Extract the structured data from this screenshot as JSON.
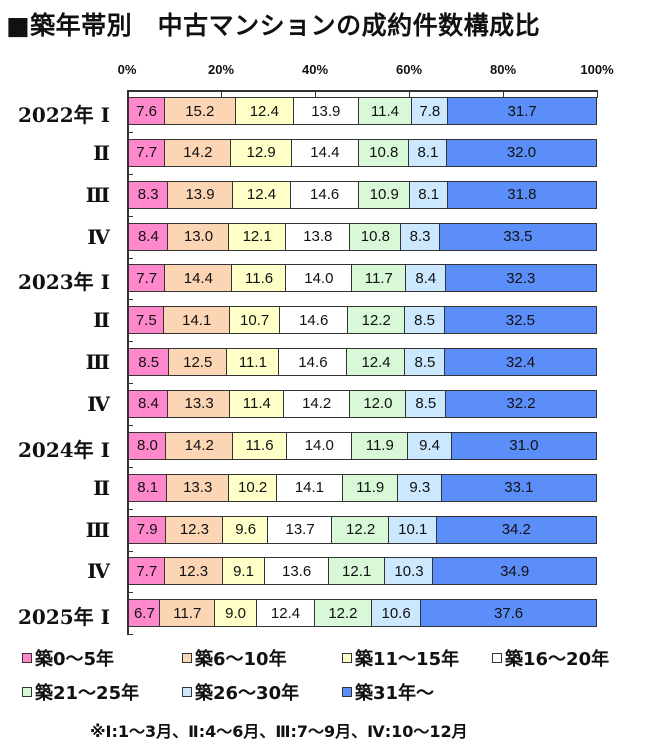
{
  "title": "■築年帯別　中古マンションの成約件数構成比",
  "axis": {
    "ticks": [
      "0%",
      "20%",
      "40%",
      "60%",
      "80%",
      "100%"
    ]
  },
  "colors": [
    "#ff88cc",
    "#fcd5b5",
    "#ffffc8",
    "#ffffff",
    "#d8f8d8",
    "#cce8ff",
    "#5b8ef8"
  ],
  "legend": [
    {
      "label": "築0～5年"
    },
    {
      "label": "築6～10年"
    },
    {
      "label": "築11～15年"
    },
    {
      "label": "築16～20年"
    },
    {
      "label": "築21～25年"
    },
    {
      "label": "築26～30年"
    },
    {
      "label": "築31年～"
    }
  ],
  "note": "※Ⅰ:1～3月、Ⅱ:4～6月、Ⅲ:7～9月、Ⅳ:10～12月",
  "chart_data": {
    "type": "bar",
    "orientation": "horizontal",
    "stacked": "percent",
    "title": "築年帯別　中古マンションの成約件数構成比",
    "xlabel": "",
    "ylabel": "",
    "xlim": [
      0,
      100
    ],
    "x_ticks": [
      "0%",
      "20%",
      "40%",
      "60%",
      "80%",
      "100%"
    ],
    "legend_position": "bottom",
    "categories": [
      "2022年 Ⅰ",
      "Ⅱ",
      "Ⅲ",
      "Ⅳ",
      "2023年 Ⅰ",
      "Ⅱ",
      "Ⅲ",
      "Ⅳ",
      "2024年 Ⅰ",
      "Ⅱ",
      "Ⅲ",
      "Ⅳ",
      "2025年 Ⅰ"
    ],
    "series": [
      {
        "name": "築0～5年",
        "values": [
          7.6,
          7.7,
          8.3,
          8.4,
          7.7,
          7.5,
          8.5,
          8.4,
          8.0,
          8.1,
          7.9,
          7.7,
          6.7
        ]
      },
      {
        "name": "築6～10年",
        "values": [
          15.2,
          14.2,
          13.9,
          13.0,
          14.4,
          14.1,
          12.5,
          13.3,
          14.2,
          13.3,
          12.3,
          12.3,
          11.7
        ]
      },
      {
        "name": "築11～15年",
        "values": [
          12.4,
          12.9,
          12.4,
          12.1,
          11.6,
          10.7,
          11.1,
          11.4,
          11.6,
          10.2,
          9.6,
          9.1,
          9.0
        ]
      },
      {
        "name": "築16～20年",
        "values": [
          13.9,
          14.4,
          14.6,
          13.8,
          14.0,
          14.6,
          14.6,
          14.2,
          14.0,
          14.1,
          13.7,
          13.6,
          12.4
        ]
      },
      {
        "name": "築21～25年",
        "values": [
          11.4,
          10.8,
          10.9,
          10.8,
          11.7,
          12.2,
          12.4,
          12.0,
          11.9,
          11.9,
          12.2,
          12.1,
          12.2
        ]
      },
      {
        "name": "築26～30年",
        "values": [
          7.8,
          8.1,
          8.1,
          8.3,
          8.4,
          8.5,
          8.5,
          8.5,
          9.4,
          9.3,
          10.1,
          10.3,
          10.6
        ]
      },
      {
        "name": "築31年～",
        "values": [
          31.7,
          32.0,
          31.8,
          33.5,
          32.3,
          32.5,
          32.4,
          32.2,
          31.0,
          33.1,
          34.2,
          34.9,
          37.6
        ]
      }
    ]
  }
}
